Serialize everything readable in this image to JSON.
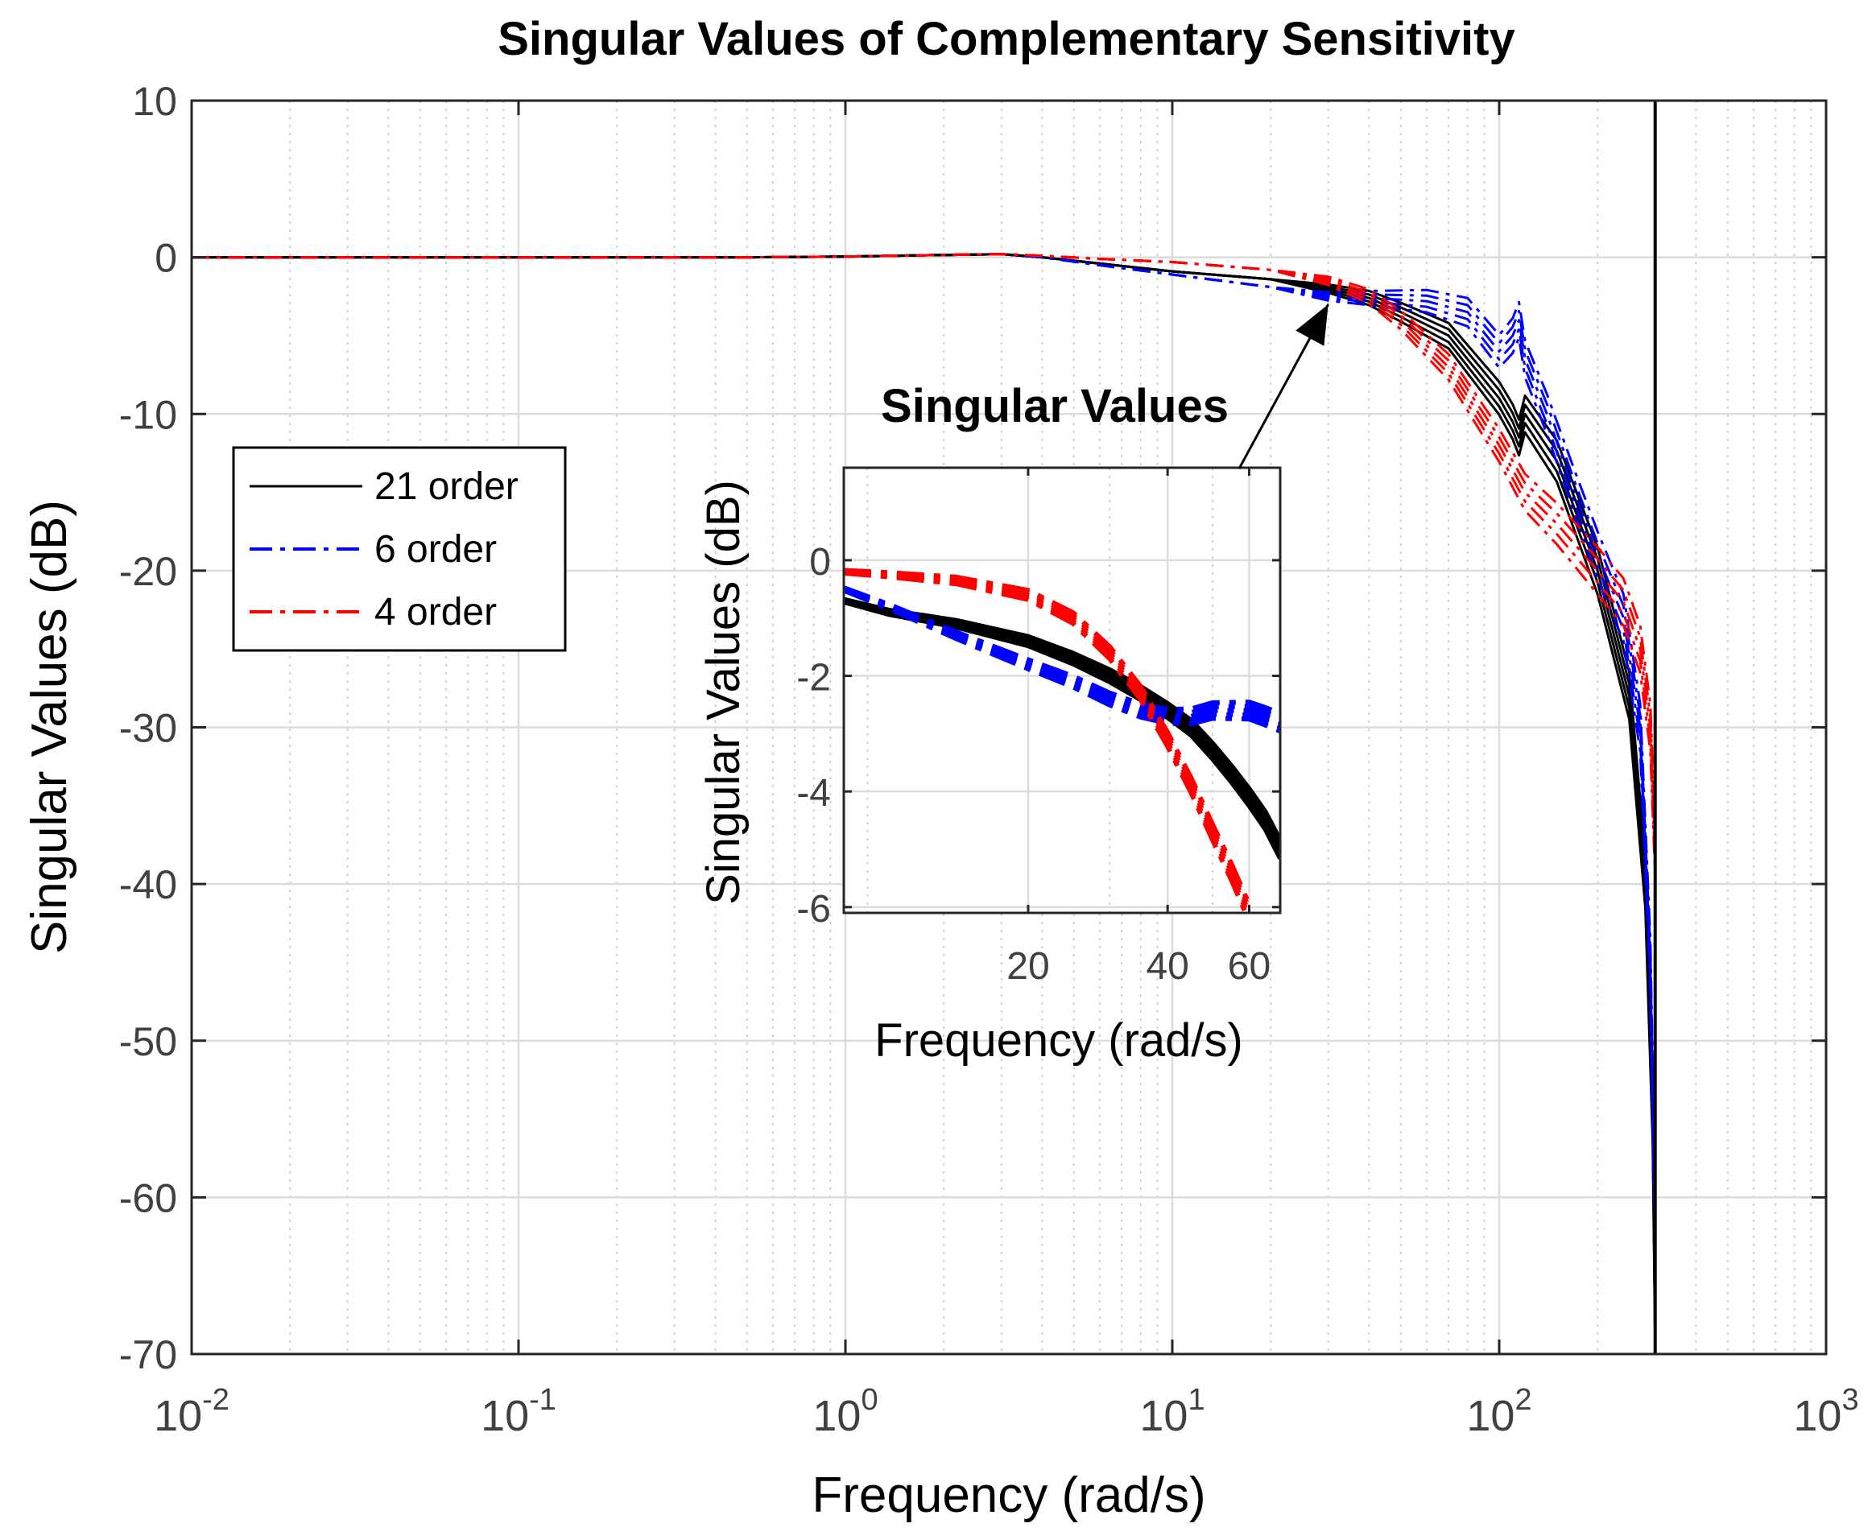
{
  "chart_data": [
    {
      "id": "main",
      "type": "line",
      "title": "Singular Values of Complementary Sensitivity",
      "xlabel": "Frequency (rad/s)",
      "ylabel": "Singular Values (dB)",
      "xscale": "log",
      "xlim": [
        0.01,
        1000
      ],
      "ylim": [
        -70,
        10
      ],
      "grid": true,
      "x_ticks": [
        {
          "value": 0.01,
          "base": "10",
          "exp": "-2"
        },
        {
          "value": 0.1,
          "base": "10",
          "exp": "-1"
        },
        {
          "value": 1,
          "base": "10",
          "exp": "0"
        },
        {
          "value": 10,
          "base": "10",
          "exp": "1"
        },
        {
          "value": 100,
          "base": "10",
          "exp": "2"
        },
        {
          "value": 1000,
          "base": "10",
          "exp": "3"
        }
      ],
      "y_ticks": [
        {
          "value": 10,
          "label": "10"
        },
        {
          "value": 0,
          "label": "0"
        },
        {
          "value": -10,
          "label": "-10"
        },
        {
          "value": -20,
          "label": "-20"
        },
        {
          "value": -30,
          "label": "-30"
        },
        {
          "value": -40,
          "label": "-40"
        },
        {
          "value": -50,
          "label": "-50"
        },
        {
          "value": -60,
          "label": "-60"
        },
        {
          "value": -70,
          "label": "-70"
        }
      ],
      "legend_position": "middle-left",
      "vertical_line_x": 300,
      "series": [
        {
          "name": "21 order",
          "color": "#000000",
          "style": "solid",
          "x": [
            0.01,
            0.1,
            0.5,
            1,
            2,
            3,
            4,
            6,
            10,
            20,
            30,
            40,
            50,
            70,
            100,
            110,
            115,
            120,
            150,
            200,
            250,
            280,
            295,
            300
          ],
          "y": [
            0,
            0,
            0,
            0.05,
            0.15,
            0.2,
            0,
            -0.4,
            -0.9,
            -1.4,
            -2,
            -2.6,
            -3.5,
            -5,
            -9,
            -10.5,
            -11.5,
            -10,
            -13,
            -20,
            -28,
            -40,
            -55,
            -68
          ]
        },
        {
          "name": "6 order",
          "color": "#0000ff",
          "style": "dashdot",
          "x": [
            0.01,
            0.1,
            0.5,
            1,
            2,
            3,
            4,
            6,
            10,
            20,
            30,
            40,
            60,
            80,
            100,
            110,
            115,
            120,
            140,
            170,
            200,
            240,
            270,
            290,
            300
          ],
          "y": [
            0,
            0,
            0,
            0.05,
            0.15,
            0.2,
            0,
            -0.5,
            -1.1,
            -1.9,
            -2.5,
            -2.6,
            -2.8,
            -3.5,
            -6,
            -5,
            -4,
            -6.5,
            -10,
            -15,
            -19,
            -23,
            -30,
            -45,
            -62
          ]
        },
        {
          "name": "4 order",
          "color": "#ff0000",
          "style": "dashdot",
          "x": [
            0.01,
            0.1,
            0.5,
            1,
            2,
            3,
            4,
            6,
            10,
            20,
            30,
            40,
            50,
            70,
            100,
            120,
            150,
            200,
            240,
            270,
            290,
            300
          ],
          "y": [
            0,
            0,
            0,
            0.05,
            0.15,
            0.2,
            0.1,
            -0.1,
            -0.3,
            -0.8,
            -1.5,
            -2.5,
            -4,
            -7,
            -12,
            -15,
            -17,
            -20,
            -22,
            -25,
            -30,
            -38
          ]
        }
      ],
      "annotation": {
        "text": "",
        "from_x": 16,
        "from_y": -13.5,
        "to_x": 30,
        "to_y": -3
      }
    },
    {
      "id": "inset",
      "type": "line",
      "title": "Singular Values",
      "xlabel": "Frequency (rad/s)",
      "ylabel": "Singular Values (dB)",
      "xscale": "log",
      "xlim": [
        8,
        70
      ],
      "ylim": [
        -6.1,
        1.6
      ],
      "grid": true,
      "x_ticks": [
        {
          "value": 20,
          "label": "20"
        },
        {
          "value": 40,
          "label": "40"
        },
        {
          "value": 60,
          "label": "60"
        }
      ],
      "y_ticks": [
        {
          "value": 0,
          "label": "0"
        },
        {
          "value": -2,
          "label": "-2"
        },
        {
          "value": -4,
          "label": "-4"
        },
        {
          "value": -6,
          "label": "-6"
        }
      ],
      "series": [
        {
          "name": "21 order",
          "color": "#000000",
          "style": "solid",
          "x": [
            8,
            10,
            14,
            20,
            25,
            30,
            35,
            40,
            45,
            50,
            55,
            60,
            65,
            70
          ],
          "y": [
            -0.7,
            -0.9,
            -1.1,
            -1.4,
            -1.7,
            -2.0,
            -2.3,
            -2.6,
            -2.9,
            -3.3,
            -3.7,
            -4.1,
            -4.5,
            -5.0
          ]
        },
        {
          "name": "6 order",
          "color": "#0000ff",
          "style": "dashdot",
          "x": [
            8,
            10,
            14,
            20,
            25,
            30,
            35,
            40,
            45,
            50,
            55,
            60,
            65,
            70
          ],
          "y": [
            -0.5,
            -0.8,
            -1.3,
            -1.8,
            -2.1,
            -2.4,
            -2.6,
            -2.7,
            -2.7,
            -2.6,
            -2.6,
            -2.6,
            -2.7,
            -2.8
          ]
        },
        {
          "name": "4 order",
          "color": "#ff0000",
          "style": "dashdot",
          "x": [
            8,
            10,
            14,
            20,
            25,
            30,
            35,
            40,
            45,
            50,
            55,
            60
          ],
          "y": [
            -0.2,
            -0.25,
            -0.35,
            -0.6,
            -1.0,
            -1.6,
            -2.3,
            -3.1,
            -3.9,
            -4.7,
            -5.4,
            -6.1
          ]
        }
      ]
    }
  ]
}
